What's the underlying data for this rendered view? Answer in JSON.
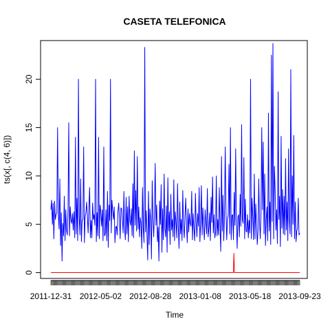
{
  "chart_data": {
    "type": "line",
    "title": "CASETA TELEFONICA",
    "xlabel": "Time",
    "ylabel": "ts(x[, c(4, 6)])",
    "ylim": [
      -0.6,
      24
    ],
    "y_ticks": [
      0,
      5,
      10,
      15,
      20
    ],
    "x_tick_labels": [
      "2011-12-31",
      "2012-05-02",
      "2012-08-28",
      "2013-01-08",
      "2013-05-18",
      "2013-09-23"
    ],
    "grid": false,
    "legend": "none",
    "series": [
      {
        "color": "#0000ff",
        "x_start": "2011-12-31",
        "x_end": "2013-09-23",
        "values": [
          6.5,
          7.5,
          5,
          7.2,
          3.5,
          7.4,
          5.5,
          6,
          6.2,
          15,
          6,
          4.5,
          9.7,
          2.8,
          6.2,
          1.2,
          5.1,
          3.8,
          7.9,
          3.3,
          6.5,
          4.4,
          3.9,
          6.4,
          15.5,
          3.8,
          6.8,
          5.5,
          5.1,
          6.1,
          4.4,
          6.3,
          3.6,
          14,
          4,
          7.7,
          3.3,
          20,
          5.8,
          3.9,
          9.7,
          3.2,
          5.4,
          5.5,
          13,
          3.1,
          5.8,
          6.2,
          7.3,
          5.8,
          4.1,
          6.7,
          8.8,
          3.6,
          5.4,
          3.6,
          7.2,
          5.5,
          6,
          4.9,
          20,
          3.2,
          6.2,
          3.8,
          14,
          3.5,
          7,
          6.3,
          4.8,
          6.5,
          3.3,
          13,
          3.8,
          4,
          6.5,
          3.3,
          8.4,
          2.6,
          7,
          5.4,
          20,
          4.1,
          7.5,
          6.4,
          5.5,
          6.8,
          3.1,
          4.7,
          4.8,
          3.9,
          6.3,
          7.2,
          5.7,
          3.5,
          6.7,
          6.6,
          5.4,
          4.1,
          8.4,
          4.5,
          3.4,
          7.8,
          4,
          6.8,
          3.2,
          7.9,
          5.4,
          4.9,
          6.6,
          3.8,
          9.2,
          3.6,
          12.6,
          4.9,
          8.5,
          4.3,
          12,
          4.5,
          6.8,
          3.7,
          5.7,
          5.1,
          2.5,
          8.8,
          4.6,
          3.1,
          23.3,
          4.2,
          6.4,
          3.9,
          1.3,
          8.4,
          2.9,
          6.6,
          5.5,
          1.4,
          9.5,
          5.5,
          3.7,
          6.1,
          11.3,
          4.9,
          7,
          3.2,
          4.7,
          1.2,
          7.4,
          5,
          9.1,
          2.1,
          6.6,
          3.4,
          10.2,
          4.6,
          3.7,
          6.9,
          2.1,
          9.8,
          4.3,
          6.3,
          2.9,
          8.1,
          4.4,
          5.5,
          3.7,
          9.6,
          3.3,
          6.3,
          5.2,
          3.6,
          9.2,
          4.8,
          2.5,
          7.3,
          4,
          5.5,
          3.3,
          8.5,
          4.8,
          3.6,
          5.9,
          7.7,
          4.9,
          3.1,
          6.6,
          4.2,
          6.1,
          5.1,
          4.8,
          8.4,
          3.4,
          6.1,
          4.5,
          3.3,
          8.2,
          5.2,
          3.7,
          6.1,
          4.8,
          8.8,
          3.2,
          5.1,
          9,
          3.9,
          6.7,
          4.7,
          3.4,
          6.5,
          5.2,
          4,
          8.7,
          3.7,
          4.5,
          6.2,
          3.3,
          7.8,
          5.2,
          9.9,
          4.1,
          6,
          3.6,
          4.1,
          10,
          3.8,
          5.5,
          3.9,
          8.8,
          4.6,
          2.2,
          12,
          4.3,
          8,
          3.3,
          6.1,
          13,
          6.4,
          3.4,
          5.6,
          5.9,
          11.2,
          4,
          15,
          3.4,
          5.9,
          6,
          3.4,
          8.3,
          4.9,
          12.8,
          5.4,
          2.5,
          5.7,
          6,
          3.7,
          8.1,
          4.8,
          15.3,
          5.5,
          5.1,
          11.9,
          3.5,
          7.6,
          4.3,
          4.2,
          6,
          3.6,
          5.4,
          4.1,
          20,
          3.5,
          7.7,
          5.8,
          3.4,
          10.2,
          3.5,
          7.1,
          5,
          2.9,
          4.4,
          9.7,
          5.3,
          3.5,
          6.2,
          15,
          6.5,
          13.5,
          4,
          10.2,
          2.8,
          5.5,
          6.8,
          3.3,
          16.5,
          4.3,
          7.3,
          2.9,
          22.5,
          5.3,
          23.7,
          3.5,
          11,
          8.6,
          4.4,
          6.5,
          3,
          18.7,
          5.5,
          7.9,
          2.7,
          14.1,
          4.6,
          8.6,
          4,
          7.9,
          3.9,
          11.8,
          4.4,
          7.3,
          3.3,
          12.8,
          5.5,
          4,
          21,
          3.7,
          10,
          5,
          14.2,
          3.5,
          7.3,
          3.2,
          4.3,
          4.6,
          7.7,
          3.9,
          4.1
        ]
      },
      {
        "color": "#ff0000",
        "x_start": "2011-12-31",
        "x_end": "2013-09-23",
        "values": [
          0,
          0,
          0,
          0,
          0,
          0,
          0,
          0,
          0,
          0,
          0,
          0,
          0,
          0,
          0,
          0,
          0,
          0,
          0,
          0,
          0,
          0,
          0,
          0,
          0,
          0,
          0,
          0,
          0,
          0,
          0,
          0,
          0,
          0,
          0,
          0,
          0,
          0,
          0,
          0,
          0,
          0,
          0,
          0,
          0,
          0,
          0,
          0,
          0,
          0,
          0,
          0,
          0,
          0,
          0,
          0,
          0,
          0,
          0,
          0,
          0,
          0,
          0,
          0,
          0,
          0,
          0,
          0,
          0,
          0,
          0,
          0,
          0,
          0,
          0,
          0,
          0,
          0,
          0,
          0,
          0,
          0,
          0,
          0,
          0,
          0,
          0,
          0,
          0,
          0,
          0,
          0,
          0,
          0,
          0,
          0,
          0,
          0,
          0,
          0,
          0,
          0,
          0,
          0,
          0,
          0,
          0,
          0,
          0,
          0,
          0,
          0,
          0,
          0,
          0,
          0,
          0,
          0,
          0,
          0,
          0,
          0,
          0,
          0,
          0,
          0,
          0,
          0,
          0,
          0,
          0,
          0,
          0,
          0,
          0,
          0,
          0,
          0,
          0,
          0,
          0,
          0,
          0,
          0,
          0,
          0,
          0,
          0,
          0,
          0,
          0,
          0,
          0,
          0,
          0,
          0,
          0,
          0,
          0,
          0,
          0,
          0,
          0,
          0,
          0,
          0,
          0,
          0,
          0,
          0,
          0,
          0,
          0,
          0,
          0,
          0,
          0,
          0,
          0,
          0,
          0,
          0,
          0,
          0,
          0,
          0,
          0,
          0,
          0,
          0,
          0,
          0,
          0,
          0,
          0,
          0,
          0,
          0,
          0,
          0,
          0,
          0,
          0,
          0,
          0,
          0,
          0,
          0,
          0,
          0,
          0,
          0,
          0,
          0,
          0,
          0,
          0,
          0,
          0,
          0,
          0,
          0,
          0,
          0,
          0,
          0,
          0,
          0,
          0,
          0,
          0,
          0,
          0,
          0,
          0,
          0,
          0,
          0,
          0,
          0,
          0,
          0,
          0,
          0,
          0,
          0,
          0,
          0,
          0,
          0,
          0,
          0,
          0,
          0,
          0,
          0,
          0,
          0,
          0,
          0,
          0,
          0,
          0,
          0,
          0,
          0,
          0,
          0,
          0,
          0,
          0,
          0,
          0,
          0,
          0,
          0,
          0,
          0,
          0,
          0,
          0,
          0,
          0,
          0,
          0,
          0,
          0,
          0,
          0,
          0,
          0,
          0,
          0,
          0,
          0,
          0,
          0,
          0,
          0,
          0,
          0,
          0,
          0,
          0,
          0,
          0,
          0,
          0,
          0,
          0,
          0,
          0,
          0,
          0,
          0,
          0,
          0,
          2,
          0,
          0,
          0,
          0,
          0,
          0,
          0,
          0,
          0,
          0,
          0,
          0,
          0,
          0,
          0,
          0,
          0,
          0,
          0,
          0,
          0,
          0,
          0,
          0,
          0,
          0,
          0,
          0,
          0,
          0,
          0,
          0,
          0,
          0,
          0,
          0,
          0,
          0,
          0,
          0,
          0,
          0,
          0,
          0,
          0,
          0,
          0,
          0,
          0,
          0,
          0,
          0,
          0,
          0,
          0,
          0,
          0,
          0,
          0,
          0,
          0,
          0,
          0,
          0,
          0,
          0,
          0,
          0,
          0,
          0,
          0,
          0,
          0,
          0,
          0,
          0,
          0,
          0,
          0,
          0,
          0,
          0,
          0,
          0,
          0,
          0,
          0,
          0,
          0,
          0,
          0,
          0,
          0,
          0,
          0,
          0,
          0,
          0,
          0,
          0,
          0,
          0,
          0,
          0,
          0,
          0,
          0,
          0,
          0,
          0,
          0,
          0,
          0,
          0
        ]
      }
    ]
  }
}
